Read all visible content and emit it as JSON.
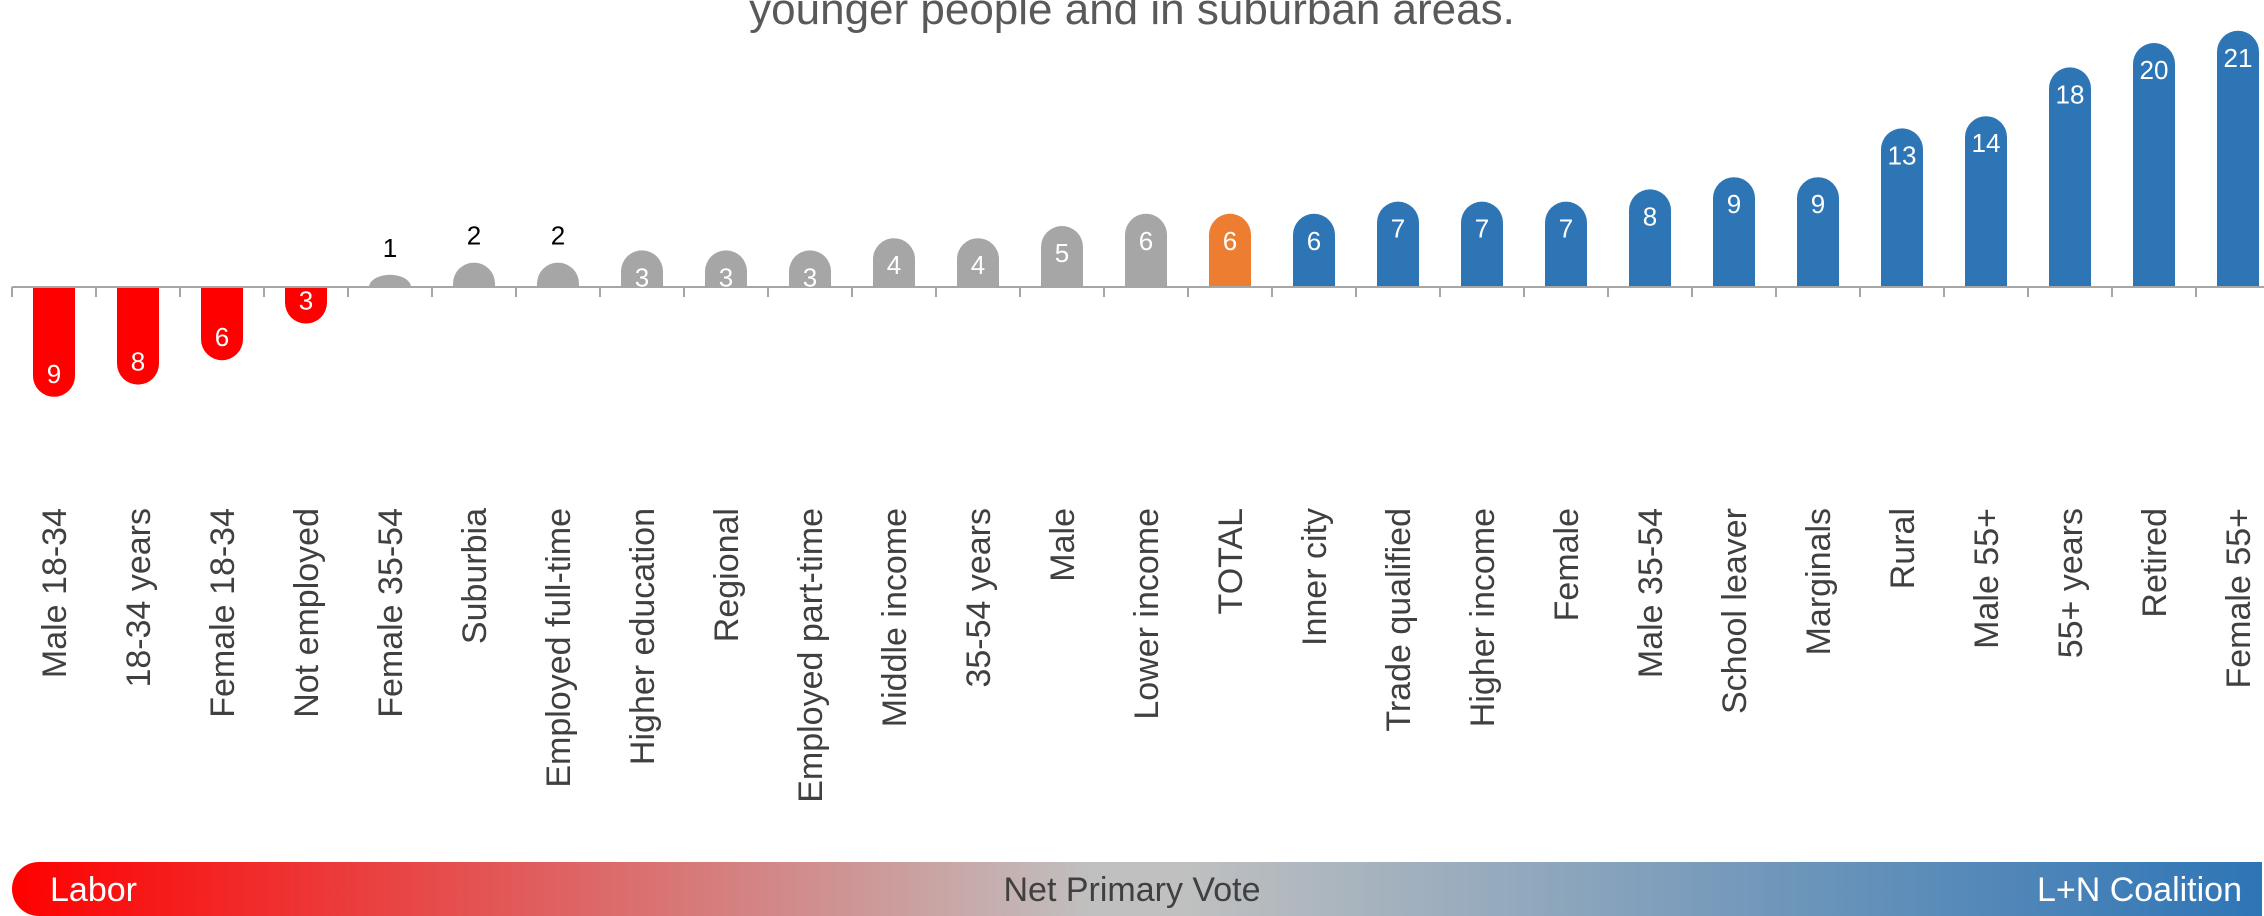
{
  "chart_data": {
    "type": "bar",
    "title": "younger people and in suburban areas.",
    "categories": [
      "Male 18-34",
      "18-34 years",
      "Female 18-34",
      "Not employed",
      "Female 35-54",
      "Suburbia",
      "Employed full-time",
      "Higher education",
      "Regional",
      "Employed part-time",
      "Middle income",
      "35-54 years",
      "Male",
      "Lower income",
      "TOTAL",
      "Inner city",
      "Trade qualified",
      "Higher income",
      "Female",
      "Male 35-54",
      "School leaver",
      "Marginals",
      "Rural",
      "Male 55+",
      "55+ years",
      "Retired",
      "Female 55+"
    ],
    "values": [
      -9,
      -8,
      -6,
      -3,
      1,
      2,
      2,
      3,
      3,
      3,
      4,
      4,
      5,
      6,
      6,
      6,
      7,
      7,
      7,
      8,
      9,
      9,
      13,
      14,
      18,
      20,
      21
    ],
    "value_labels": [
      "9",
      "8",
      "6",
      "3",
      "1",
      "2",
      "2",
      "3",
      "3",
      "3",
      "4",
      "4",
      "5",
      "6",
      "6",
      "6",
      "7",
      "7",
      "7",
      "8",
      "9",
      "9",
      "13",
      "14",
      "18",
      "20",
      "21"
    ],
    "bar_colors": [
      "#ff0000",
      "#ff0000",
      "#ff0000",
      "#ff0000",
      "#a6a6a6",
      "#a6a6a6",
      "#a6a6a6",
      "#a6a6a6",
      "#a6a6a6",
      "#a6a6a6",
      "#a6a6a6",
      "#a6a6a6",
      "#a6a6a6",
      "#a6a6a6",
      "#ed7d31",
      "#2e75b6",
      "#2e75b6",
      "#2e75b6",
      "#2e75b6",
      "#2e75b6",
      "#2e75b6",
      "#2e75b6",
      "#2e75b6",
      "#2e75b6",
      "#2e75b6",
      "#2e75b6",
      "#2e75b6"
    ],
    "label_colors": [
      "#ffffff",
      "#ffffff",
      "#ffffff",
      "#ffffff",
      "#000000",
      "#000000",
      "#000000",
      "#ffffff",
      "#ffffff",
      "#ffffff",
      "#ffffff",
      "#ffffff",
      "#ffffff",
      "#ffffff",
      "#ffffff",
      "#ffffff",
      "#ffffff",
      "#ffffff",
      "#ffffff",
      "#ffffff",
      "#ffffff",
      "#ffffff",
      "#ffffff",
      "#ffffff",
      "#ffffff",
      "#ffffff",
      "#ffffff"
    ],
    "ylim": [
      -10,
      22
    ],
    "grid": false,
    "legend": {
      "left": "Labor",
      "center": "Net Primary Vote",
      "right": "L+N Coalition",
      "colors": [
        "#ff0000",
        "#c0c0c0",
        "#2e75b6"
      ]
    }
  }
}
